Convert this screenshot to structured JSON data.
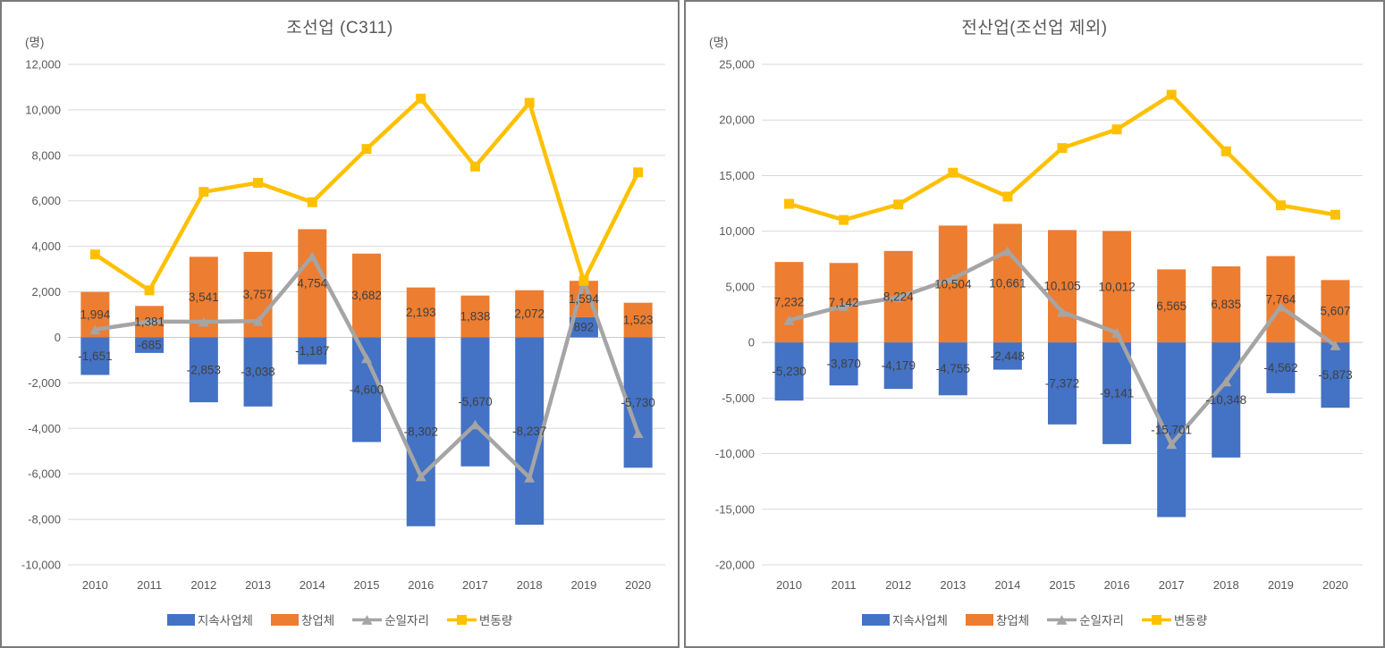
{
  "chart_data": [
    {
      "type": "bar-line-combo",
      "title": "조선업 (C311)",
      "unit_label": "(명)",
      "categories": [
        "2010",
        "2011",
        "2012",
        "2013",
        "2014",
        "2015",
        "2016",
        "2017",
        "2018",
        "2019",
        "2020"
      ],
      "series": [
        {
          "name": "지속사업체",
          "type": "bar",
          "color": "#4472C4",
          "data_labels": true,
          "values": [
            -1651,
            -685,
            -2853,
            -3038,
            -1187,
            -4600,
            -8302,
            -5670,
            -8237,
            892,
            -5730
          ]
        },
        {
          "name": "창업체",
          "type": "bar",
          "color": "#ED7D31",
          "data_labels": true,
          "values": [
            1994,
            1381,
            3541,
            3757,
            4754,
            3682,
            2193,
            1838,
            2072,
            1594,
            1523
          ]
        },
        {
          "name": "순일자리",
          "type": "line",
          "marker": "triangle",
          "color": "#A5A5A5",
          "values": [
            343,
            696,
            688,
            719,
            3567,
            -918,
            -6109,
            -3832,
            -6165,
            2486,
            -4207
          ]
        },
        {
          "name": "변동량",
          "type": "line",
          "marker": "square",
          "color": "#FFC000",
          "values": [
            3645,
            2066,
            6394,
            6795,
            5941,
            8282,
            10495,
            7508,
            10309,
            2486,
            7253
          ]
        }
      ],
      "ylim": [
        -10000,
        12000
      ],
      "ytick_step": 2000,
      "grid": true,
      "legend_position": "bottom"
    },
    {
      "type": "bar-line-combo",
      "title": "전산업(조선업 제외)",
      "unit_label": "(명)",
      "categories": [
        "2010",
        "2011",
        "2012",
        "2013",
        "2014",
        "2015",
        "2016",
        "2017",
        "2018",
        "2019",
        "2020"
      ],
      "series": [
        {
          "name": "지속사업체",
          "type": "bar",
          "color": "#4472C4",
          "data_labels": true,
          "values": [
            -5230,
            -3870,
            -4179,
            -4755,
            -2448,
            -7372,
            -9141,
            -15701,
            -10348,
            -4562,
            -5873
          ]
        },
        {
          "name": "창업체",
          "type": "bar",
          "color": "#ED7D31",
          "data_labels": true,
          "values": [
            7232,
            7142,
            8224,
            10504,
            10661,
            10105,
            10012,
            6565,
            6835,
            7764,
            5607
          ]
        },
        {
          "name": "순일자리",
          "type": "line",
          "marker": "triangle",
          "color": "#A5A5A5",
          "values": [
            2002,
            3272,
            4045,
            5749,
            8213,
            2733,
            871,
            -9136,
            -3513,
            3202,
            -266
          ]
        },
        {
          "name": "변동량",
          "type": "line",
          "marker": "square",
          "color": "#FFC000",
          "values": [
            12462,
            11012,
            12403,
            15259,
            13109,
            17477,
            19153,
            22266,
            17183,
            12326,
            11480
          ]
        }
      ],
      "ylim": [
        -20000,
        25000
      ],
      "ytick_step": 5000,
      "grid": true,
      "legend_position": "bottom"
    }
  ],
  "palette": {
    "bar_blue": "#4472C4",
    "bar_orange": "#ED7D31",
    "line_gray": "#A5A5A5",
    "line_gold": "#FFC000",
    "gridline": "#D9D9D9",
    "zero_line": "#C9C9C9",
    "axis_text": "#595959",
    "data_label_text": "#404040"
  }
}
